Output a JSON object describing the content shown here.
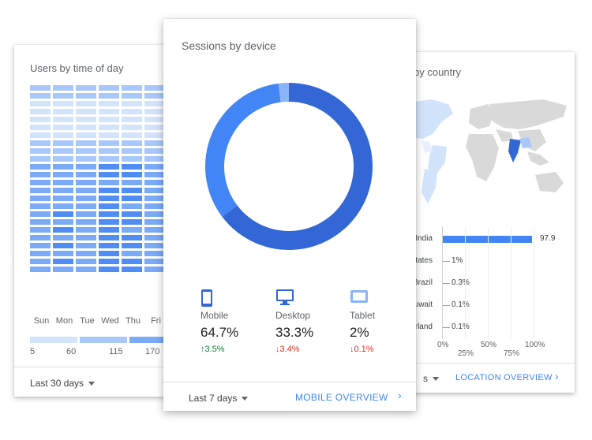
{
  "left_card": {
    "title": "Users by time of day",
    "days": [
      "Sun",
      "Mon",
      "Tue",
      "Wed",
      "Thu",
      "Fri"
    ],
    "legend": [
      "5",
      "60",
      "115",
      "170"
    ],
    "range_label": "Last 30 days",
    "colors": [
      "#d2e3fc",
      "#a8c7fa",
      "#7baaf7",
      "#4f8df5"
    ]
  },
  "mid_card": {
    "title": "Sessions by device",
    "devices": [
      {
        "label": "Mobile",
        "value": "64.7%",
        "change": "3.5%",
        "direction": "up",
        "icon": "smartphone-icon"
      },
      {
        "label": "Desktop",
        "value": "33.3%",
        "change": "3.4%",
        "direction": "down",
        "icon": "desktop-icon"
      },
      {
        "label": "Tablet",
        "value": "2%",
        "change": "0.1%",
        "direction": "down",
        "icon": "tablet-icon"
      }
    ],
    "donut": {
      "mobile": 64.7,
      "desktop": 33.3,
      "tablet": 2
    },
    "colors": {
      "mobile": "#3367d6",
      "desktop": "#4285f4",
      "tablet": "#8ab4f8"
    },
    "range_label": "Last 7 days",
    "action_label": "MOBILE OVERVIEW",
    "chevron": "›"
  },
  "right_card": {
    "title": "by country",
    "rows": [
      {
        "name": "India",
        "value": "97.9",
        "pct": 97.9
      },
      {
        "name": "tates",
        "value": "1%",
        "pct": 1
      },
      {
        "name": "Brazil",
        "value": "0.3%",
        "pct": 0.3
      },
      {
        "name": "uwait",
        "value": "0.1%",
        "pct": 0.1
      },
      {
        "name": "rland",
        "value": "0.1%",
        "pct": 0.1
      }
    ],
    "axis": [
      "0%",
      "25%",
      "50%",
      "75%",
      "100%"
    ],
    "range_label": "s",
    "action_label": "LOCATION OVERVIEW",
    "chevron": "›"
  }
}
